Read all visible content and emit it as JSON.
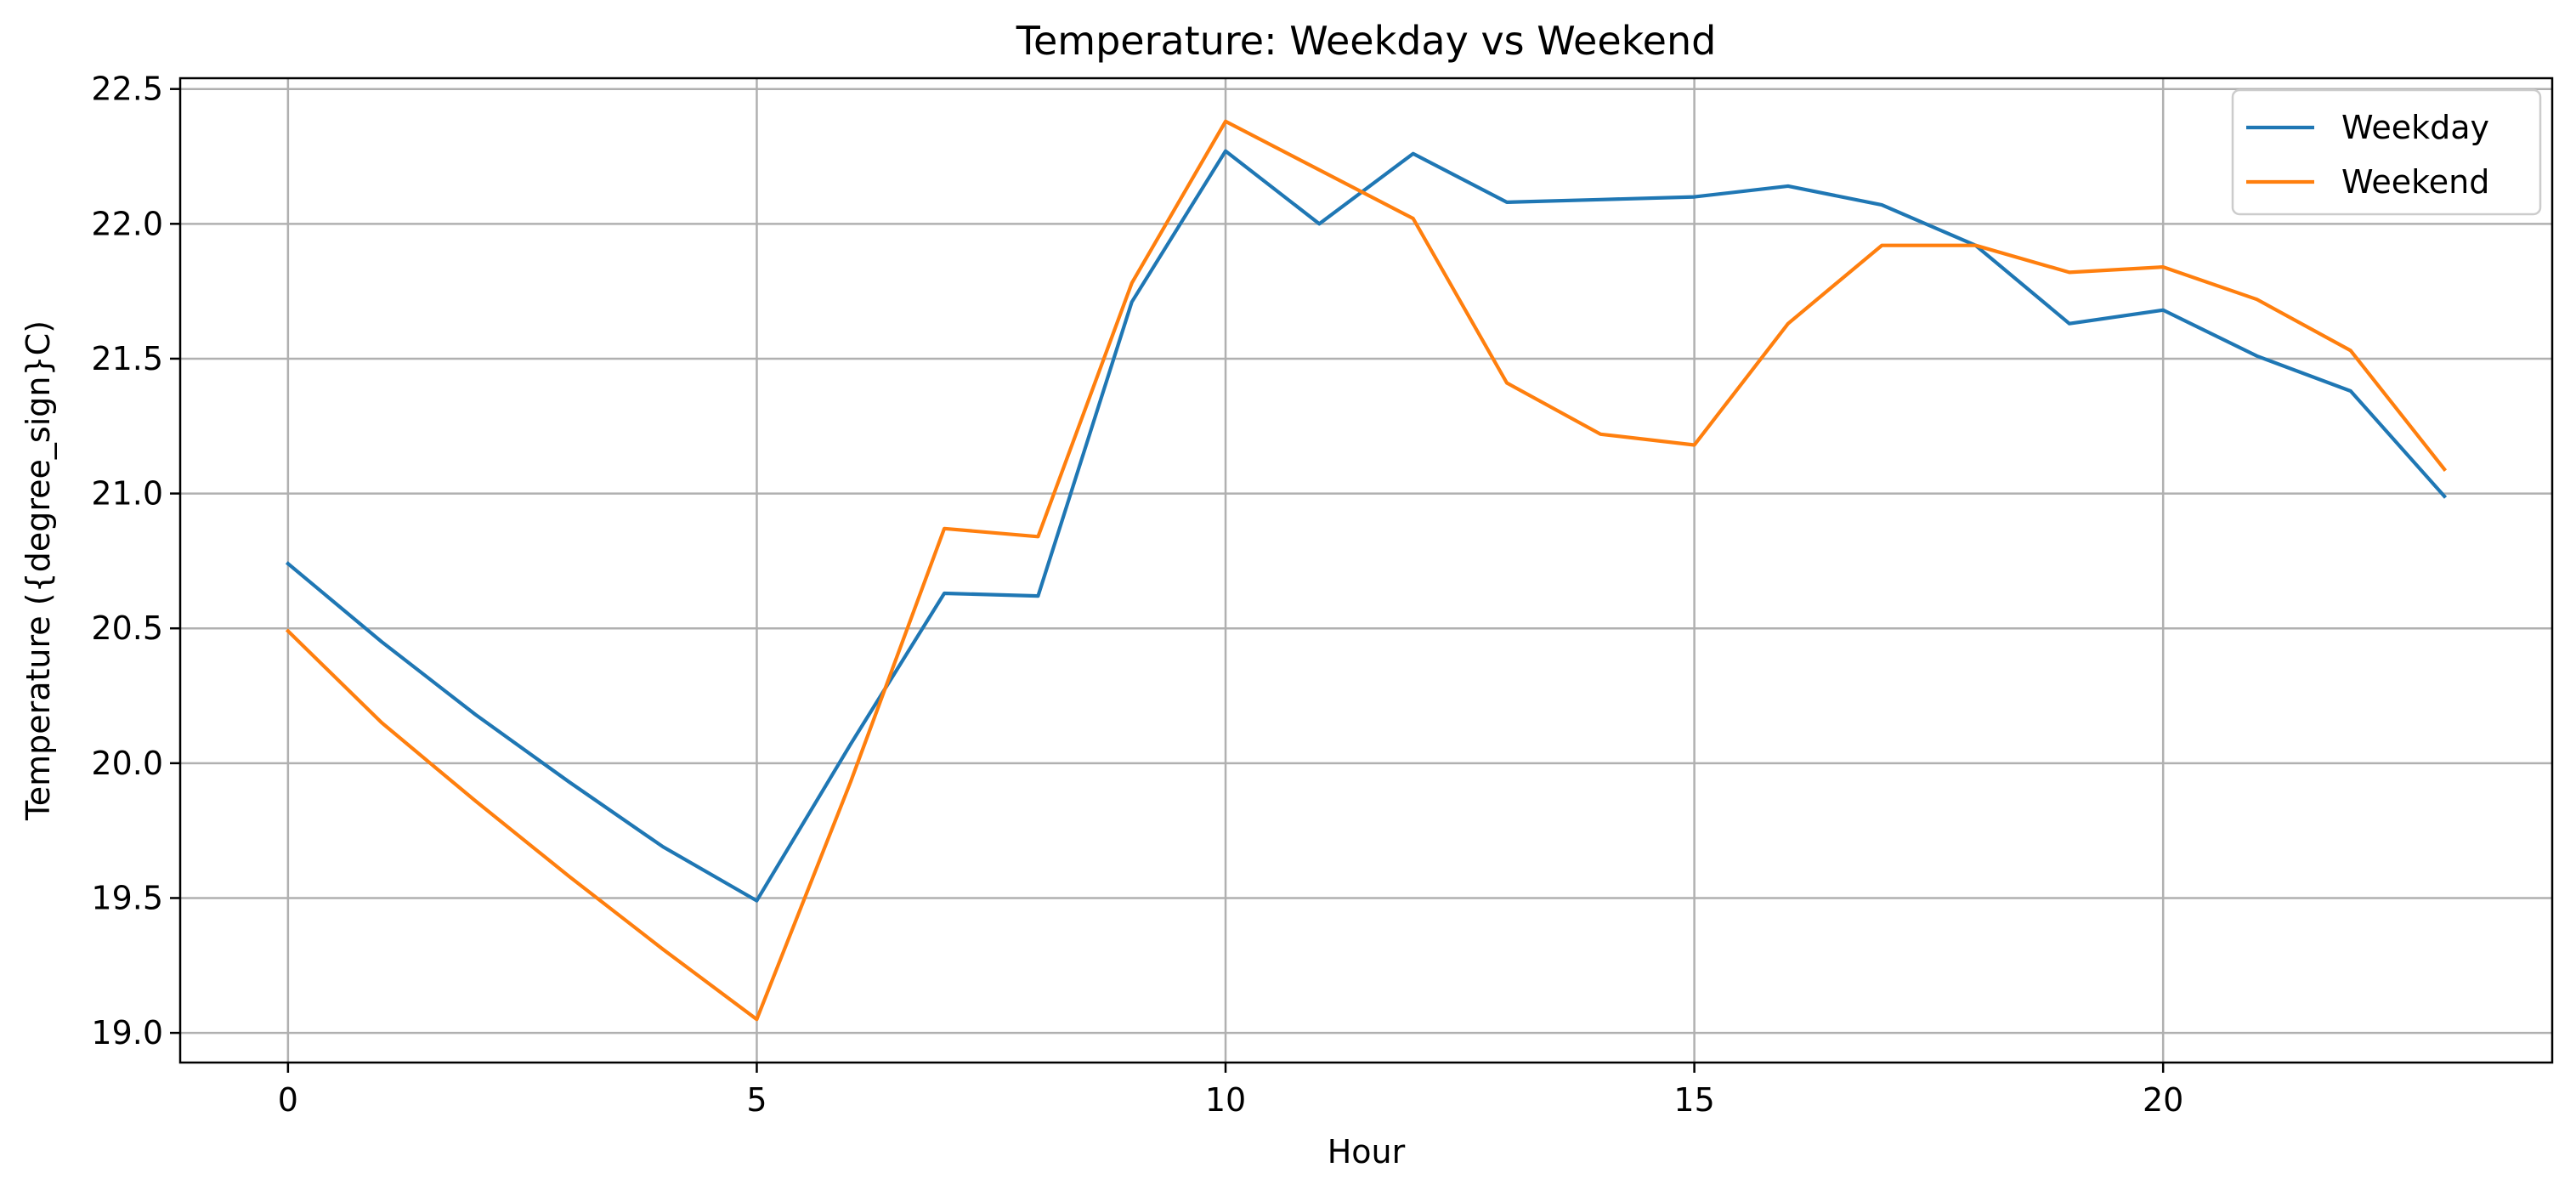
{
  "chart_data": {
    "type": "line",
    "title": "Temperature: Weekday vs Weekend",
    "xlabel": "Hour",
    "ylabel": "Temperature ({degree_sign}C)",
    "x": [
      0,
      1,
      2,
      3,
      4,
      5,
      6,
      7,
      8,
      9,
      10,
      11,
      12,
      13,
      14,
      15,
      16,
      17,
      18,
      19,
      20,
      21,
      22,
      23
    ],
    "xlim": [
      -1.15,
      24.15
    ],
    "ylim": [
      18.89,
      22.54
    ],
    "xticks": [
      0,
      5,
      10,
      15,
      20
    ],
    "xtick_labels": [
      "0",
      "5",
      "10",
      "15",
      "20"
    ],
    "yticks": [
      19.0,
      19.5,
      20.0,
      20.5,
      21.0,
      21.5,
      22.0,
      22.5
    ],
    "ytick_labels": [
      "19.0",
      "19.5",
      "20.0",
      "20.5",
      "21.0",
      "21.5",
      "22.0",
      "22.5"
    ],
    "grid": true,
    "legend_position": "top-right",
    "series": [
      {
        "name": "Weekday",
        "color": "#1f77b4",
        "values": [
          20.74,
          20.45,
          20.18,
          19.93,
          19.69,
          19.49,
          20.07,
          20.63,
          20.62,
          21.71,
          22.27,
          22.0,
          22.26,
          22.08,
          22.09,
          22.1,
          22.14,
          22.07,
          21.92,
          21.63,
          21.68,
          21.51,
          21.38,
          20.99
        ]
      },
      {
        "name": "Weekend",
        "color": "#ff7f0e",
        "values": [
          20.49,
          20.15,
          19.86,
          19.58,
          19.31,
          19.05,
          19.93,
          20.87,
          20.84,
          21.78,
          22.38,
          22.2,
          22.02,
          21.41,
          21.22,
          21.18,
          21.63,
          21.92,
          21.92,
          21.82,
          21.84,
          21.72,
          21.53,
          21.09
        ]
      }
    ]
  }
}
